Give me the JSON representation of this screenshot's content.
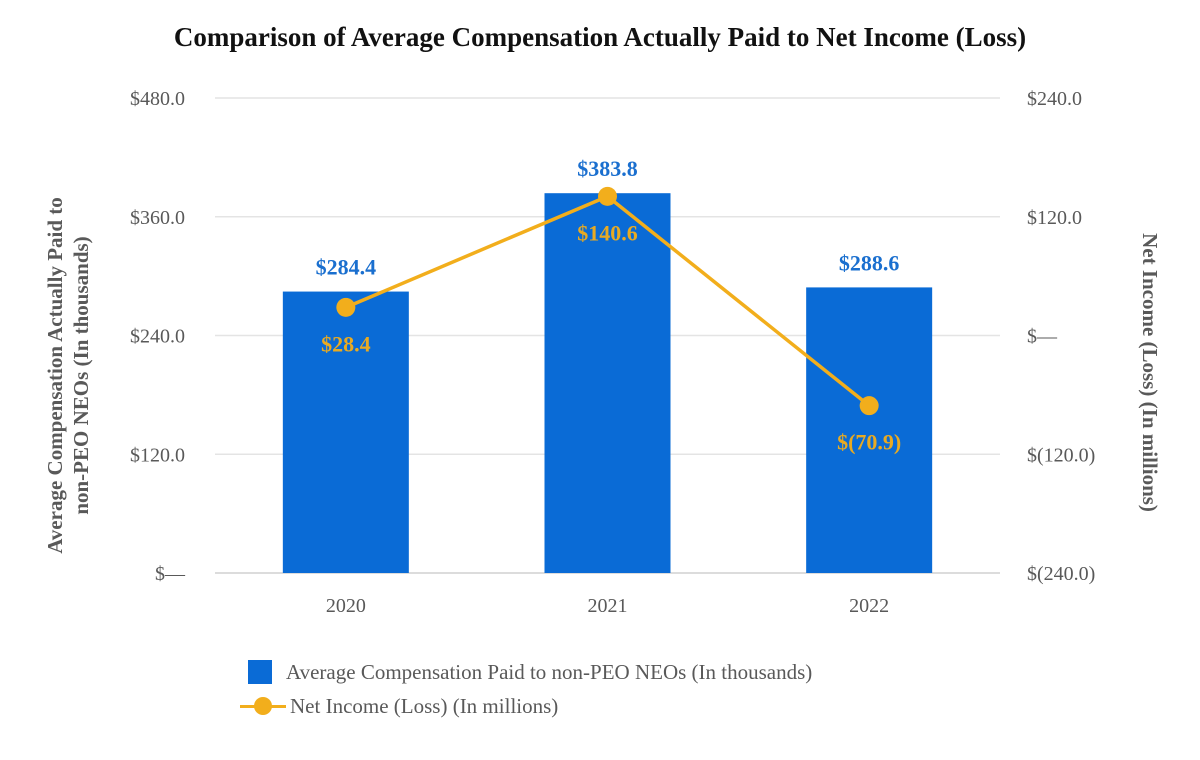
{
  "chart_data": {
    "type": "bar+line",
    "title": "Comparison of Average Compensation Actually Paid to Net Income (Loss)",
    "categories": [
      "2020",
      "2021",
      "2022"
    ],
    "series": [
      {
        "name": "Average Compensation Paid to non-PEO NEOs (In thousands)",
        "type": "bar",
        "axis": "left",
        "values": [
          284.4,
          383.8,
          288.6
        ],
        "labels": [
          "$284.4",
          "$383.8",
          "$288.6"
        ],
        "color": "#0a6bd6"
      },
      {
        "name": "Net Income (Loss) (In millions)",
        "type": "line",
        "axis": "right",
        "values": [
          28.4,
          140.6,
          -70.9
        ],
        "labels": [
          "$28.4",
          "$140.6",
          "$(70.9)"
        ],
        "color": "#f2ae1c"
      }
    ],
    "y_left": {
      "label": "Average Compensation Actually Paid to non-PEO NEOs (In thousands)",
      "label_lines": [
        "Average Compensation Actually Paid to",
        "non-PEO NEOs (In thousands)"
      ],
      "range": [
        0,
        480
      ],
      "ticks": [
        0,
        120,
        240,
        360,
        480
      ],
      "tick_labels": [
        "$—",
        "$120.0",
        "$240.0",
        "$360.0",
        "$480.0"
      ]
    },
    "y_right": {
      "label": "Net Income (Loss) (In millions)",
      "range": [
        -240,
        240
      ],
      "ticks": [
        -240,
        -120,
        0,
        120,
        240
      ],
      "tick_labels": [
        "$(240.0)",
        "$(120.0)",
        "$—",
        "$120.0",
        "$240.0"
      ]
    },
    "grid": true,
    "legend_position": "bottom"
  }
}
